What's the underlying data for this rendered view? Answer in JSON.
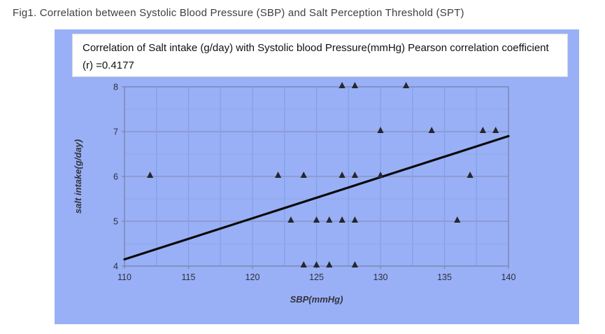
{
  "figure": {
    "caption": "Fig1. Correlation between Systolic Blood Pressure (SBP) and Salt Perception Threshold (SPT)"
  },
  "annotation": {
    "text": "Correlation of Salt intake (g/day) with Systolic blood Pressure(mmHg) Pearson correlation coefficient (r) =0.4177"
  },
  "chart_data": {
    "type": "scatter",
    "title": "",
    "xlabel": "SBP(mmHg)",
    "ylabel": "salt intake(g/day)",
    "xlim": [
      110,
      140
    ],
    "ylim": [
      4,
      8
    ],
    "xticks": [
      110,
      115,
      120,
      125,
      130,
      135,
      140
    ],
    "yticks": [
      4,
      5,
      6,
      7,
      8
    ],
    "x_grid_step": 2.5,
    "y_grid_step": 0.5,
    "grid": true,
    "legend": "none",
    "pearson_r": 0.4177,
    "marker": "filled-triangle-up",
    "points": [
      [
        112,
        6
      ],
      [
        122,
        6
      ],
      [
        123,
        5
      ],
      [
        124,
        4
      ],
      [
        124,
        6
      ],
      [
        125,
        4
      ],
      [
        125,
        5
      ],
      [
        126,
        4
      ],
      [
        126,
        5
      ],
      [
        127,
        5
      ],
      [
        127,
        6
      ],
      [
        127,
        8
      ],
      [
        128,
        4
      ],
      [
        128,
        5
      ],
      [
        128,
        6
      ],
      [
        128,
        8
      ],
      [
        130,
        6
      ],
      [
        130,
        7
      ],
      [
        132,
        8
      ],
      [
        134,
        7
      ],
      [
        136,
        5
      ],
      [
        137,
        6
      ],
      [
        138,
        7
      ],
      [
        139,
        7
      ]
    ],
    "trendline": {
      "x1": 110,
      "y1": 4.15,
      "x2": 140,
      "y2": 6.9
    },
    "colors": {
      "panel_bg": "#99b0f7",
      "plot_border": "#7a86ad",
      "grid_vertical": "#84a0e8",
      "grid_major_h": "#8a95c2",
      "grid_minor_h": "#90a6e6",
      "marker": "#26262e",
      "trend": "#0a0a0a"
    }
  }
}
